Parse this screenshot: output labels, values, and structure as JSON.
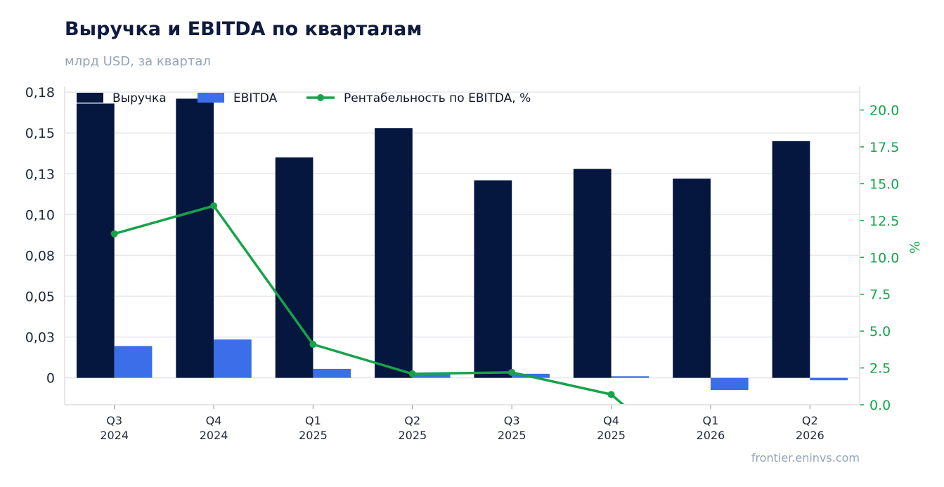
{
  "header": {
    "title": "Выручка и EBITDA по кварталам",
    "subtitle": "млрд USD, за квартал"
  },
  "footer": {
    "source": "frontier.eninvs.com"
  },
  "colors": {
    "revenue": "#05163f",
    "ebitda": "#3b6ee8",
    "margin": "#16a34a",
    "grid": "#e5e7eb"
  },
  "chart_data": {
    "type": "bar",
    "categories": [
      [
        "Q3",
        "2024"
      ],
      [
        "Q4",
        "2024"
      ],
      [
        "Q1",
        "2025"
      ],
      [
        "Q2",
        "2025"
      ],
      [
        "Q3",
        "2025"
      ],
      [
        "Q4",
        "2025"
      ],
      [
        "Q1",
        "2026"
      ],
      [
        "Q2",
        "2026"
      ]
    ],
    "series": [
      {
        "name": "Выручка",
        "axis": "left",
        "type": "bar",
        "values": [
          0.168,
          0.171,
          0.135,
          0.153,
          0.121,
          0.128,
          0.122,
          0.145
        ]
      },
      {
        "name": "EBITDA",
        "axis": "left",
        "type": "bar",
        "values": [
          0.0195,
          0.0235,
          0.0055,
          0.003,
          0.0025,
          0.001,
          -0.0075,
          -0.0015
        ]
      },
      {
        "name": "Рентабельность по EBITDA, %",
        "axis": "right",
        "type": "line",
        "values": [
          11.6,
          13.5,
          4.1,
          2.1,
          2.2,
          0.7,
          null,
          null
        ]
      }
    ],
    "yleft": {
      "ticks": [
        "0",
        "0,03",
        "0,05",
        "0,08",
        "0,10",
        "0,13",
        "0,15",
        "0,18"
      ],
      "tick_values": [
        0,
        0.025,
        0.05,
        0.075,
        0.1,
        0.125,
        0.15,
        0.175
      ],
      "range": [
        -0.0165,
        0.1785
      ]
    },
    "yright": {
      "label": "%",
      "ticks": [
        "0.0",
        "2.5",
        "5.0",
        "7.5",
        "10.0",
        "12.5",
        "15.0",
        "17.5",
        "20.0"
      ],
      "tick_values": [
        0,
        2.5,
        5,
        7.5,
        10,
        12.5,
        15,
        17.5,
        20
      ],
      "range": [
        0,
        21.6
      ]
    },
    "grid": true,
    "legend": "top-left"
  }
}
